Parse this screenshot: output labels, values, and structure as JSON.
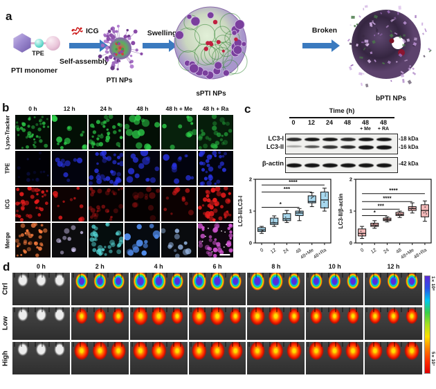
{
  "panel_a": {
    "label": "a",
    "pti_monomer_label": "PTI monomer",
    "tpe_label": "TPE",
    "icg_label": "ICG",
    "self_assembly_label": "Self-assembly",
    "pti_nps_label": "PTI NPs",
    "swelling_label": "Swelling",
    "spti_nps_label": "sPTI NPs",
    "broken_label": "Broken",
    "bpti_nps_label": "bPTI NPs",
    "arrow_color": "#3a7abf"
  },
  "panel_b": {
    "label": "b",
    "col_headers": [
      "0 h",
      "12 h",
      "24 h",
      "48 h",
      "48 h + Me",
      "48 h + Ra"
    ],
    "row_labels": [
      "Lyso-Tracker",
      "TPE",
      "ICG",
      "Merge"
    ],
    "channel_colors": {
      "lyso_tracker": "#2ed04a",
      "tpe": "#2a35e8",
      "icg": "#e81c1c",
      "merge": [
        "#ff8040",
        "#cfc4ee",
        "#55d8d8",
        "#4f8ae8",
        "#9fc0f0",
        "#d858d8"
      ]
    }
  },
  "panel_c": {
    "label": "c",
    "blot": {
      "title": "Time  (h)",
      "lane_labels": [
        "0",
        "12",
        "24",
        "48",
        "48",
        "48"
      ],
      "lane_sublabels": [
        "",
        "",
        "",
        "",
        "+ Me",
        "+ RA"
      ],
      "rows": [
        {
          "name": "LC3-I",
          "kda": "-18 kDa"
        },
        {
          "name": "LC3-II",
          "kda": "-16 kDa"
        },
        {
          "name": "β-actin",
          "kda": "-42 kDa"
        }
      ]
    }
  },
  "panel_d": {
    "label": "d",
    "col_headers": [
      "0 h",
      "2 h",
      "4 h",
      "6 h",
      "8 h",
      "10 h",
      "12 h"
    ],
    "row_labels": [
      "Ctrl",
      "Low",
      "High"
    ],
    "colorbar": {
      "top_label": "1×10⁸",
      "bottom_label": "5×10⁷",
      "colors": [
        "#5b2bd8",
        "#2a52e8",
        "#00c8f0",
        "#38d048",
        "#a8e020",
        "#ffe000",
        "#ff8000",
        "#ff3000",
        "#e00000"
      ]
    }
  },
  "chart_data": [
    {
      "type": "box",
      "title": "",
      "xlabel": "",
      "ylabel": "LC3-II/LC3-I",
      "categories": [
        "0",
        "12",
        "24",
        "48",
        "48+Me",
        "48+Ra"
      ],
      "ylim": [
        0,
        2
      ],
      "yticks": [
        0,
        1,
        2
      ],
      "grid": false,
      "box_fill": "#a8d8ee",
      "boxes": [
        {
          "min": 0.3,
          "q1": 0.36,
          "median": 0.41,
          "q3": 0.48,
          "max": 0.52
        },
        {
          "min": 0.52,
          "q1": 0.58,
          "median": 0.63,
          "q3": 0.78,
          "max": 0.85
        },
        {
          "min": 0.64,
          "q1": 0.7,
          "median": 0.76,
          "q3": 0.92,
          "max": 1.02
        },
        {
          "min": 0.7,
          "q1": 0.86,
          "median": 0.94,
          "q3": 1.0,
          "max": 1.08
        },
        {
          "min": 1.14,
          "q1": 1.26,
          "median": 1.3,
          "q3": 1.48,
          "max": 1.58
        },
        {
          "min": 1.0,
          "q1": 1.1,
          "median": 1.35,
          "q3": 1.6,
          "max": 1.72
        }
      ],
      "significance": [
        {
          "from": 0,
          "to": 3,
          "label": "*",
          "y": 1.12
        },
        {
          "from": 0,
          "to": 4,
          "label": "***",
          "y": 1.6
        },
        {
          "from": 0,
          "to": 5,
          "label": "****",
          "y": 1.82
        }
      ]
    },
    {
      "type": "box",
      "title": "",
      "xlabel": "",
      "ylabel": "LC3-II/β-actin",
      "categories": [
        "0",
        "12",
        "24",
        "48",
        "48+Me",
        "48+Ra"
      ],
      "ylim": [
        0,
        2
      ],
      "yticks": [
        0,
        1,
        2
      ],
      "grid": false,
      "box_fill": "#f3b8b8",
      "boxes": [
        {
          "min": 0.14,
          "q1": 0.22,
          "median": 0.3,
          "q3": 0.44,
          "max": 0.52
        },
        {
          "min": 0.46,
          "q1": 0.52,
          "median": 0.56,
          "q3": 0.62,
          "max": 0.7
        },
        {
          "min": 0.66,
          "q1": 0.7,
          "median": 0.73,
          "q3": 0.78,
          "max": 0.82
        },
        {
          "min": 0.8,
          "q1": 0.86,
          "median": 0.9,
          "q3": 0.96,
          "max": 1.0
        },
        {
          "min": 0.94,
          "q1": 1.02,
          "median": 1.08,
          "q3": 1.14,
          "max": 1.26
        },
        {
          "min": 0.68,
          "q1": 0.82,
          "median": 1.02,
          "q3": 1.2,
          "max": 1.32
        }
      ],
      "significance": [
        {
          "from": 0,
          "to": 2,
          "label": "*",
          "y": 0.86
        },
        {
          "from": 0,
          "to": 3,
          "label": "***",
          "y": 1.06
        },
        {
          "from": 0,
          "to": 4,
          "label": "****",
          "y": 1.3
        },
        {
          "from": 0,
          "to": 5,
          "label": "****",
          "y": 1.55
        }
      ]
    }
  ]
}
